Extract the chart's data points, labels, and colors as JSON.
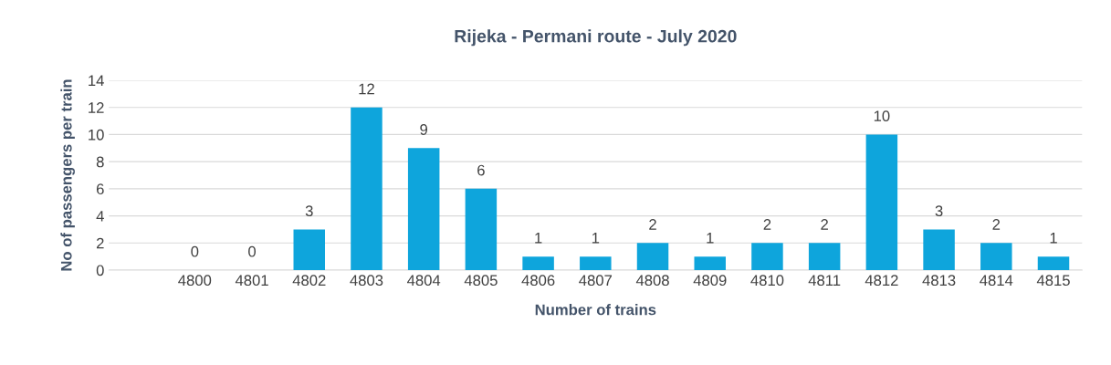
{
  "chart_data": {
    "type": "bar",
    "title": "Rijeka - Permani route - July 2020",
    "xlabel": "Number of trains",
    "ylabel": "No of passengers per train",
    "categories": [
      null,
      "4800",
      "4801",
      "4802",
      "4803",
      "4804",
      "4805",
      "4806",
      "4807",
      "4808",
      "4809",
      "4810",
      "4811",
      "4812",
      "4813",
      "4814",
      "4815"
    ],
    "values": [
      null,
      0,
      0,
      3,
      12,
      9,
      6,
      1,
      1,
      2,
      1,
      2,
      2,
      10,
      3,
      2,
      1
    ],
    "color": "#0ea5dc",
    "ylim": [
      0,
      14
    ],
    "yticks": [
      0,
      2,
      4,
      6,
      8,
      10,
      12,
      14
    ],
    "grid": "y",
    "data_labels": true,
    "legend": false
  }
}
